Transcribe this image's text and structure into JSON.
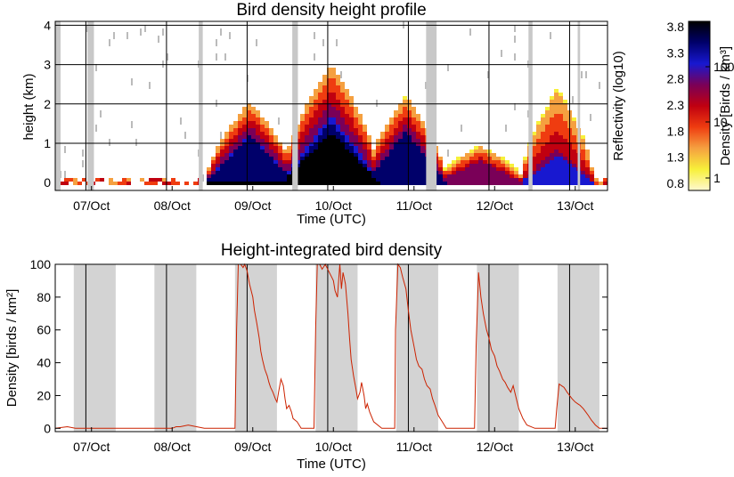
{
  "chart_data": [
    {
      "type": "heatmap",
      "title": "Bird density height profile",
      "xlabel": "Time (UTC)",
      "ylabel": "height (km)",
      "x_tick_labels": [
        "07/Oct",
        "08/Oct",
        "09/Oct",
        "10/Oct",
        "11/Oct",
        "12/Oct",
        "13/Oct"
      ],
      "y_ticks": [
        0,
        1,
        2,
        3,
        4
      ],
      "ylim": [
        -0.2,
        4.1
      ],
      "xlim_days": [
        6.55,
        13.4
      ],
      "grid": true,
      "gap_bands_days": [
        [
          6.95,
          7.03
        ],
        [
          8.33,
          8.38
        ],
        [
          9.49,
          9.56
        ],
        [
          11.15,
          11.28
        ],
        [
          12.42,
          12.47
        ],
        [
          13.03,
          13.06
        ]
      ],
      "colorbar": {
        "left_label": "Reflectivity (log10)",
        "left_ticks": [
          "3.8",
          "3.3",
          "2.8",
          "2.3",
          "1.8",
          "1.3",
          "0.8"
        ],
        "right_label": "Density [Birds / km³]",
        "right_ticks": [
          "100",
          "10",
          "1"
        ],
        "colors": [
          "#fff8d0",
          "#f7f03a",
          "#f5a040",
          "#ef3c10",
          "#c00010",
          "#7a0058",
          "#1818d0",
          "#00006a",
          "#000000"
        ]
      },
      "series": [
        {
          "center_day": 8.97,
          "peak_height_km": 2.05,
          "core_height_km": 1.2,
          "intensity": 0.95,
          "width_days": 0.55
        },
        {
          "center_day": 9.97,
          "peak_height_km": 3.0,
          "core_height_km": 1.55,
          "intensity": 1.0,
          "width_days": 0.6
        },
        {
          "center_day": 10.9,
          "peak_height_km": 2.2,
          "core_height_km": 1.3,
          "intensity": 0.9,
          "width_days": 0.5
        },
        {
          "center_day": 11.82,
          "peak_height_km": 0.95,
          "core_height_km": 0.55,
          "intensity": 0.7,
          "width_days": 0.55
        },
        {
          "center_day": 12.78,
          "peak_height_km": 2.4,
          "core_height_km": 0.7,
          "intensity": 0.8,
          "width_days": 0.45
        }
      ]
    },
    {
      "type": "line",
      "title": "Height-integrated bird density",
      "xlabel": "Time (UTC)",
      "ylabel": "Density [birds / km²]",
      "x_tick_labels": [
        "07/Oct",
        "08/Oct",
        "09/Oct",
        "10/Oct",
        "11/Oct",
        "12/Oct",
        "13/Oct"
      ],
      "y_ticks": [
        0,
        20,
        40,
        60,
        80,
        100
      ],
      "ylim": [
        -2,
        100
      ],
      "xlim_days": [
        6.55,
        13.4
      ],
      "line_color": "#cc2200",
      "night_bands_days": [
        [
          6.78,
          7.3
        ],
        [
          7.78,
          8.3
        ],
        [
          8.78,
          9.3
        ],
        [
          9.78,
          10.3
        ],
        [
          10.78,
          11.3
        ],
        [
          11.78,
          12.3
        ],
        [
          12.78,
          13.3
        ]
      ],
      "midnight_lines_days": [
        6.93,
        7.93,
        8.93,
        9.93,
        10.93,
        11.93,
        12.93
      ],
      "series": [
        {
          "name": "",
          "x": [
            6.55,
            6.7,
            6.8,
            6.9,
            7.0,
            7.3,
            7.6,
            7.9,
            8.0,
            8.05,
            8.1,
            8.2,
            8.4,
            8.6,
            8.7,
            8.75,
            8.78,
            8.8,
            8.82,
            8.85,
            8.88,
            8.9,
            8.93,
            8.96,
            9.0,
            9.02,
            9.05,
            9.08,
            9.1,
            9.12,
            9.15,
            9.18,
            9.2,
            9.22,
            9.25,
            9.28,
            9.3,
            9.32,
            9.35,
            9.38,
            9.4,
            9.42,
            9.45,
            9.48,
            9.5,
            9.55,
            9.6,
            9.7,
            9.75,
            9.76,
            9.78,
            9.8,
            9.83,
            9.86,
            9.9,
            9.95,
            9.98,
            10.0,
            10.02,
            10.05,
            10.08,
            10.1,
            10.12,
            10.15,
            10.18,
            10.2,
            10.22,
            10.25,
            10.28,
            10.3,
            10.33,
            10.35,
            10.38,
            10.4,
            10.42,
            10.45,
            10.5,
            10.6,
            10.7,
            10.76,
            10.77,
            10.8,
            10.83,
            10.86,
            10.9,
            10.93,
            10.96,
            11.0,
            11.03,
            11.06,
            11.1,
            11.13,
            11.16,
            11.2,
            11.23,
            11.26,
            11.3,
            11.35,
            11.4,
            11.5,
            11.6,
            11.7,
            11.75,
            11.77,
            11.8,
            11.83,
            11.86,
            11.9,
            11.93,
            11.96,
            12.0,
            12.03,
            12.06,
            12.1,
            12.13,
            12.16,
            12.2,
            12.23,
            12.26,
            12.3,
            12.35,
            12.4,
            12.5,
            12.6,
            12.7,
            12.75,
            12.77,
            12.8,
            12.83,
            12.86,
            12.9,
            12.93,
            12.96,
            13.0,
            13.03,
            13.06,
            13.1,
            13.13,
            13.16,
            13.2,
            13.25,
            13.3,
            13.4
          ],
          "y": [
            0,
            1,
            0,
            0,
            0,
            0,
            0,
            0,
            0,
            1,
            1,
            2,
            0,
            0,
            0,
            0,
            0,
            60,
            100,
            100,
            98,
            100,
            96,
            88,
            80,
            72,
            64,
            55,
            47,
            42,
            36,
            32,
            28,
            25,
            22,
            18,
            16,
            22,
            30,
            26,
            18,
            12,
            14,
            10,
            6,
            4,
            0,
            0,
            0,
            0,
            62,
            100,
            100,
            97,
            100,
            95,
            92,
            90,
            84,
            80,
            100,
            85,
            95,
            88,
            70,
            55,
            42,
            32,
            24,
            18,
            22,
            28,
            20,
            12,
            15,
            10,
            4,
            0,
            0,
            0,
            60,
            100,
            98,
            92,
            85,
            72,
            60,
            50,
            42,
            38,
            36,
            30,
            26,
            24,
            18,
            14,
            8,
            4,
            0,
            0,
            0,
            0,
            0,
            50,
            95,
            80,
            70,
            60,
            55,
            48,
            44,
            38,
            35,
            30,
            28,
            25,
            22,
            26,
            20,
            12,
            6,
            2,
            0,
            0,
            0,
            0,
            12,
            27,
            26,
            25,
            22,
            20,
            18,
            16,
            15,
            14,
            12,
            10,
            8,
            5,
            2,
            0,
            0
          ]
        }
      ]
    }
  ]
}
